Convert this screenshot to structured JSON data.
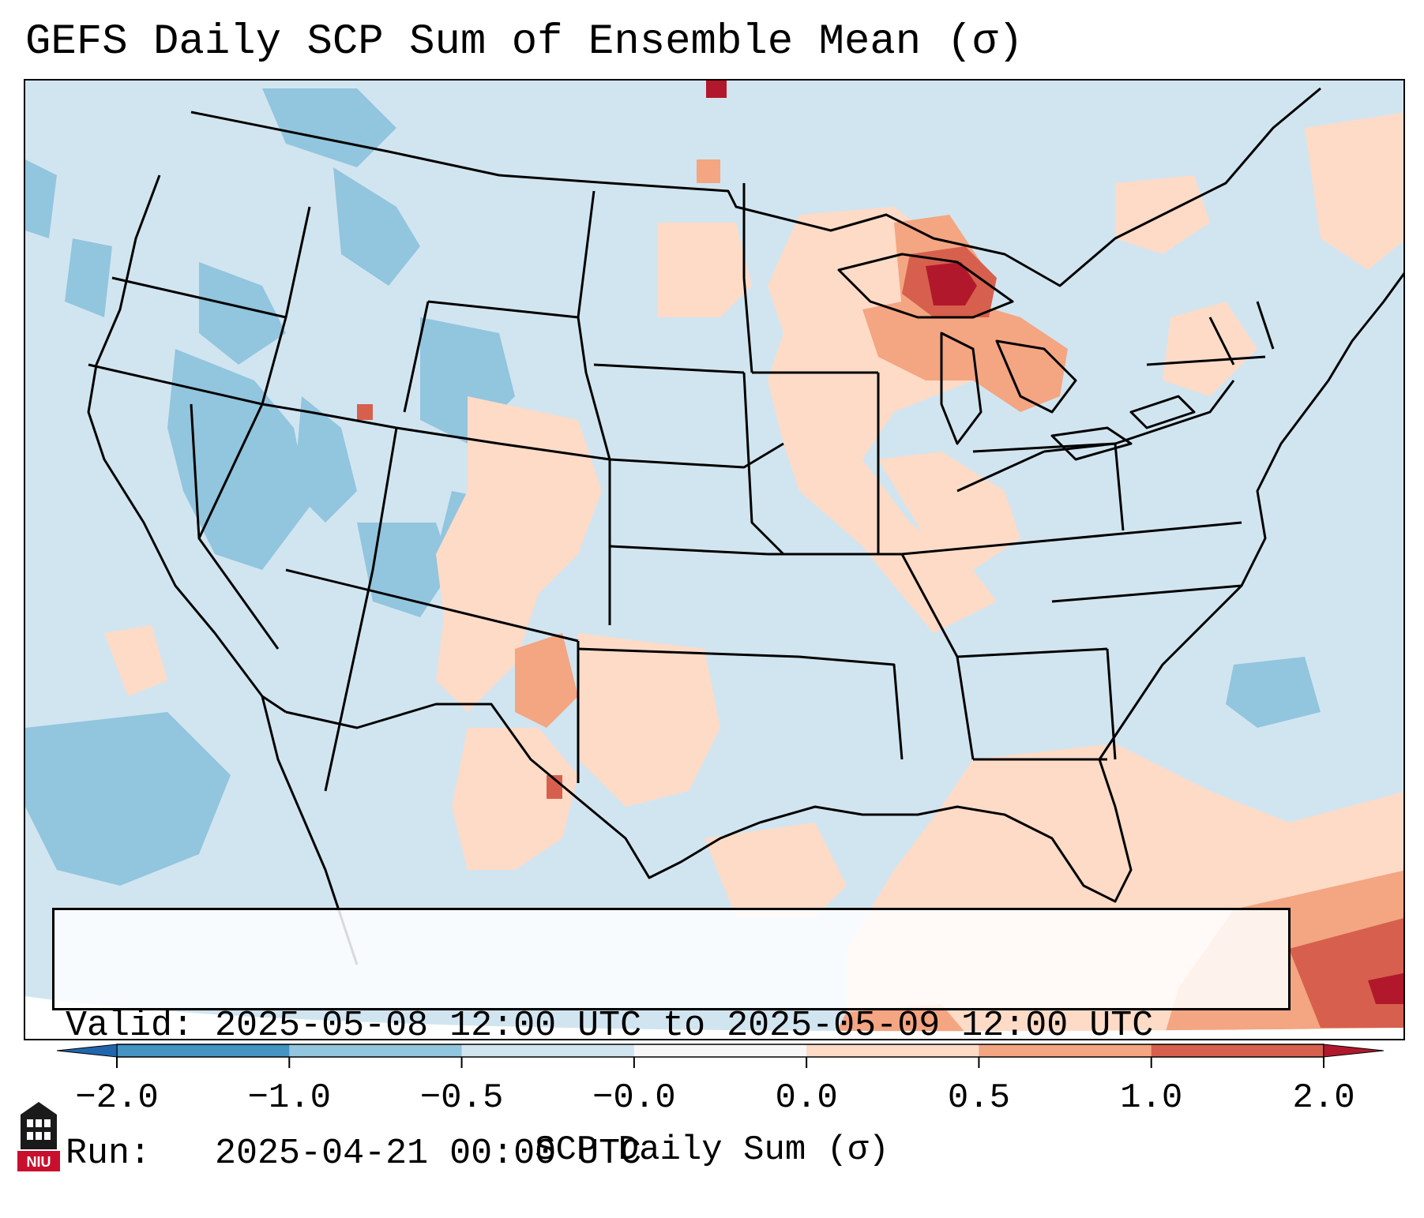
{
  "title": "GEFS Daily SCP Sum of Ensemble Mean (σ)",
  "info": {
    "valid_label": "Valid:",
    "valid_value": "2025-05-08 12:00 UTC to 2025-05-09 12:00 UTC",
    "run_label": "Run:",
    "run_value": "2025-04-21 00:00 UTC"
  },
  "colorbar": {
    "label": "SCP Daily Sum (σ)",
    "ticks": [
      "−2.0",
      "−1.0",
      "−0.5",
      "−0.0",
      "0.0",
      "0.5",
      "1.0",
      "2.0"
    ],
    "colors": [
      "#4393c3",
      "#92c5de",
      "#d1e5f0",
      "#f7f7f7",
      "#fddbc7",
      "#f4a582",
      "#d6604d"
    ],
    "extend_low_color": "#2166ac",
    "extend_high_color": "#b2182b"
  },
  "map": {
    "projection": "Lambert conformal, contiguous United States",
    "background_color": "#d1e5f0",
    "border_color": "#000000",
    "regions": [
      {
        "name": "Upper Michigan / Lake Superior",
        "value_range": "1.0 to 2.0+"
      },
      {
        "name": "Lower Michigan",
        "value_range": "0.5 to 1.0"
      },
      {
        "name": "Upper Midwest / Wisconsin / Illinois / Indiana",
        "value_range": "0.0 to 0.5"
      },
      {
        "name": "West Texas / New Mexico",
        "value_range": "0.0 to 1.0"
      },
      {
        "name": "Caribbean / Cuba",
        "value_range": "0.5 to 2.0"
      },
      {
        "name": "Intermountain West / Colorado Rockies",
        "value_range": "-1.0 to -0.5"
      },
      {
        "name": "Northeast Pacific",
        "value_range": "-1.0 to -0.5"
      }
    ]
  },
  "logo": {
    "text": "NIU",
    "icon": "niu-university-logo"
  }
}
